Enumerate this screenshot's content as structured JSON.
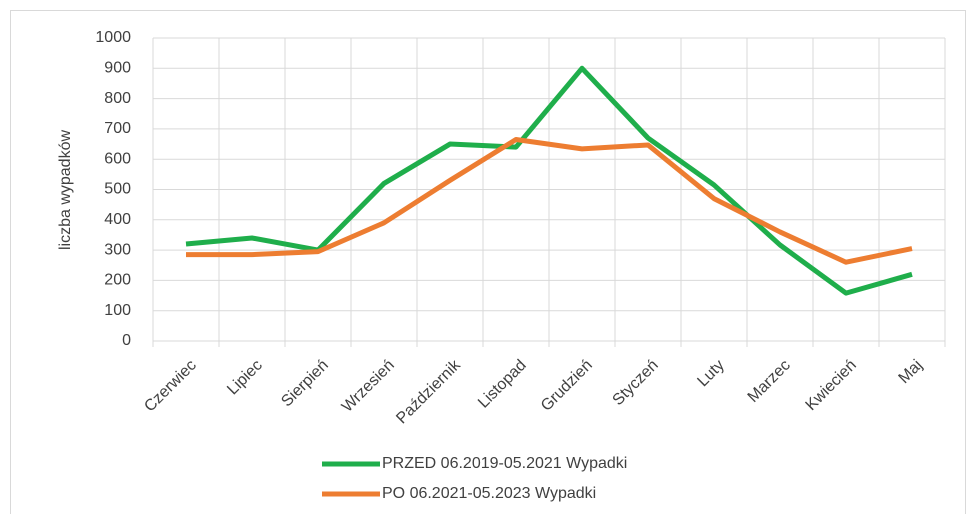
{
  "chart_data": {
    "type": "line",
    "y_axis_label": "liczba wypadków",
    "categories": [
      "Czerwiec",
      "Lipiec",
      "Sierpień",
      "Wrzesień",
      "Październik",
      "Listopad",
      "Grudzień",
      "Styczeń",
      "Luty",
      "Marzec",
      "Kwiecień",
      "Maj"
    ],
    "series": [
      {
        "name": "PRZED 06.2019-05.2021 Wypadki",
        "color": "#1fae4b",
        "values": [
          320,
          340,
          300,
          520,
          650,
          640,
          900,
          670,
          515,
          317,
          158,
          220
        ]
      },
      {
        "name": "PO 06.2021-05.2023 Wypadki",
        "color": "#ed7d31",
        "values": [
          285,
          285,
          295,
          390,
          530,
          665,
          634,
          647,
          470,
          360,
          260,
          305
        ]
      }
    ],
    "ylim": [
      0,
      1000
    ],
    "yticks": [
      0,
      100,
      200,
      300,
      400,
      500,
      600,
      700,
      800,
      900,
      1000
    ],
    "grid": true,
    "legend": "bottom"
  }
}
